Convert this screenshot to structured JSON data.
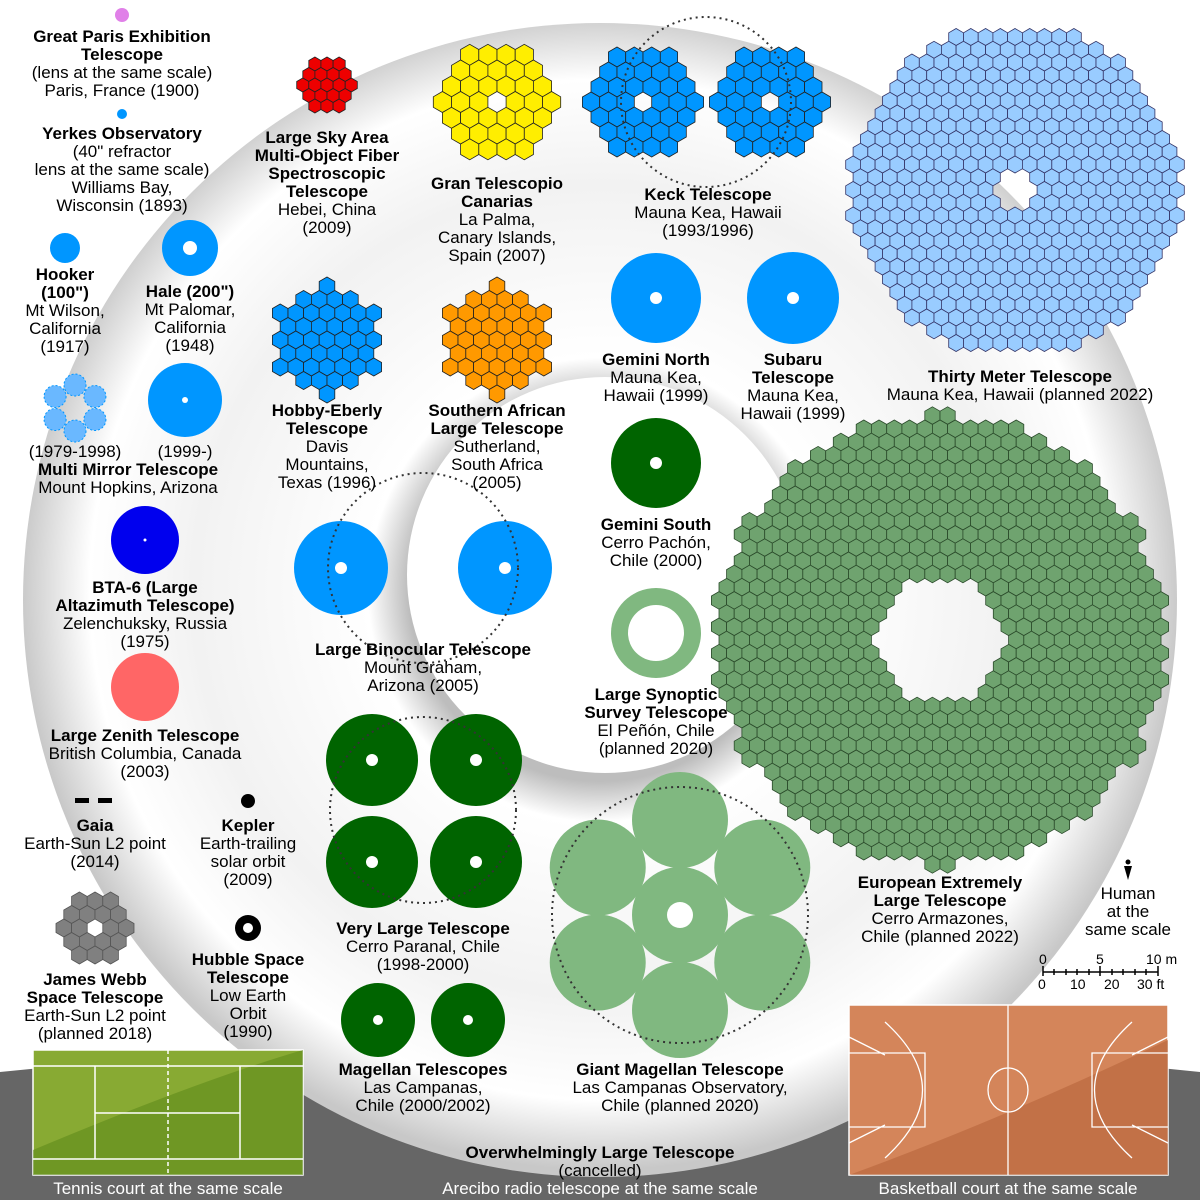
{
  "telescopes": [
    {
      "id": "paris",
      "name_lines": [
        "Great Paris Exhibition",
        "Telescope"
      ],
      "detail_lines": [
        "(lens at the same scale)",
        "Paris, France (1900)"
      ],
      "color": "#e080e8"
    },
    {
      "id": "yerkes",
      "name_lines": [
        "Yerkes Observatory"
      ],
      "detail_lines": [
        "(40\" refractor",
        "lens at the same scale)",
        "Williams Bay,",
        "Wisconsin (1893)"
      ],
      "color": "#0096ff"
    },
    {
      "id": "hooker",
      "name_lines": [
        "Hooker",
        "(100\")"
      ],
      "detail_lines": [
        "Mt Wilson,",
        "California",
        "(1917)"
      ],
      "color": "#0096ff"
    },
    {
      "id": "hale",
      "name_lines": [
        "Hale (200\")"
      ],
      "detail_lines": [
        "Mt Palomar,",
        "California",
        "(1948)"
      ],
      "color": "#0096ff"
    },
    {
      "id": "mmt",
      "name_lines": [
        "Multi Mirror Telescope"
      ],
      "detail_lines": [
        "Mount Hopkins, Arizona"
      ],
      "dates": [
        "(1979-1998)",
        "(1999-)"
      ],
      "color": "#0096ff"
    },
    {
      "id": "bta",
      "name_lines": [
        "BTA-6 (Large",
        "Altazimuth Telescope)"
      ],
      "detail_lines": [
        "Zelenchuksky, Russia",
        "(1975)"
      ],
      "color": "#0000ee"
    },
    {
      "id": "lzt",
      "name_lines": [
        "Large Zenith Telescope"
      ],
      "detail_lines": [
        "British Columbia, Canada",
        "(2003)"
      ],
      "color": "#ff6666"
    },
    {
      "id": "gaia",
      "name_lines": [
        "Gaia"
      ],
      "detail_lines": [
        "Earth-Sun L2 point",
        "(2014)"
      ],
      "color": "#000000"
    },
    {
      "id": "kepler",
      "name_lines": [
        "Kepler"
      ],
      "detail_lines": [
        "Earth-trailing",
        "solar orbit",
        "(2009)"
      ],
      "color": "#000000"
    },
    {
      "id": "jwst",
      "name_lines": [
        "James Webb",
        "Space Telescope"
      ],
      "detail_lines": [
        "Earth-Sun L2 point",
        "(planned 2018)"
      ],
      "color": "#808080"
    },
    {
      "id": "hubble",
      "name_lines": [
        "Hubble Space",
        "Telescope"
      ],
      "detail_lines": [
        "Low Earth",
        "Orbit",
        "(1990)"
      ],
      "color": "#000000"
    },
    {
      "id": "lamost",
      "name_lines": [
        "Large Sky Area",
        "Multi-Object Fiber",
        "Spectroscopic",
        "Telescope"
      ],
      "detail_lines": [
        "Hebei, China",
        "(2009)"
      ],
      "color": "#ee0000"
    },
    {
      "id": "gtc",
      "name_lines": [
        "Gran Telescopio",
        "Canarias"
      ],
      "detail_lines": [
        "La Palma,",
        "Canary Islands,",
        "Spain (2007)"
      ],
      "color": "#ffee00"
    },
    {
      "id": "keck",
      "name_lines": [
        "Keck Telescope"
      ],
      "detail_lines": [
        "Mauna Kea, Hawaii",
        "(1993/1996)"
      ],
      "color": "#0096ff"
    },
    {
      "id": "tmt",
      "name_lines": [
        "Thirty Meter Telescope"
      ],
      "detail_lines": [
        "Mauna Kea, Hawaii (planned 2022)"
      ],
      "color": "#99ccff"
    },
    {
      "id": "het",
      "name_lines": [
        "Hobby-Eberly",
        "Telescope"
      ],
      "detail_lines": [
        "Davis",
        "Mountains,",
        "Texas (1996)"
      ],
      "color": "#0096ff"
    },
    {
      "id": "salt",
      "name_lines": [
        "Southern African",
        "Large Telescope"
      ],
      "detail_lines": [
        "Sutherland,",
        "South Africa",
        "(2005)"
      ],
      "color": "#ff9900"
    },
    {
      "id": "gemn",
      "name_lines": [
        "Gemini North"
      ],
      "detail_lines": [
        "Mauna Kea,",
        "Hawaii (1999)"
      ],
      "color": "#0096ff"
    },
    {
      "id": "subaru",
      "name_lines": [
        "Subaru",
        "Telescope"
      ],
      "detail_lines": [
        "Mauna Kea,",
        "Hawaii (1999)"
      ],
      "color": "#0096ff"
    },
    {
      "id": "gems",
      "name_lines": [
        "Gemini South"
      ],
      "detail_lines": [
        "Cerro Pachón,",
        "Chile (2000)"
      ],
      "color": "#006400"
    },
    {
      "id": "lbt",
      "name_lines": [
        "Large Binocular Telescope"
      ],
      "detail_lines": [
        "Mount Graham,",
        "Arizona (2005)"
      ],
      "color": "#0096ff"
    },
    {
      "id": "lsst",
      "name_lines": [
        "Large Synoptic",
        "Survey Telescope"
      ],
      "detail_lines": [
        "El Peñón, Chile",
        "(planned 2020)"
      ],
      "color": "#80b880"
    },
    {
      "id": "vlt",
      "name_lines": [
        "Very Large Telescope"
      ],
      "detail_lines": [
        "Cerro Paranal, Chile",
        "(1998-2000)"
      ],
      "color": "#006400"
    },
    {
      "id": "elt",
      "name_lines": [
        "European Extremely",
        "Large Telescope"
      ],
      "detail_lines": [
        "Cerro Armazones,",
        "Chile (planned 2022)"
      ],
      "color": "#6fa36f"
    },
    {
      "id": "magellan",
      "name_lines": [
        "Magellan Telescopes"
      ],
      "detail_lines": [
        "Las Campanas,",
        "Chile (2000/2002)"
      ],
      "color": "#006400"
    },
    {
      "id": "gmt",
      "name_lines": [
        "Giant Magellan Telescope"
      ],
      "detail_lines": [
        "Las Campanas Observatory,",
        "Chile (planned 2020)"
      ],
      "color": "#80b880"
    },
    {
      "id": "owl",
      "name_lines": [
        "Overwhelmingly Large Telescope"
      ],
      "detail_lines": [
        "(cancelled)"
      ],
      "color": "#dddddd"
    }
  ],
  "human": {
    "lines": [
      "Human",
      "at the",
      "same scale"
    ]
  },
  "scale_bar": {
    "metric": [
      "0",
      "5",
      "10 m"
    ],
    "imperial": [
      "0",
      "10",
      "20",
      "30 ft"
    ]
  },
  "captions": {
    "tennis": "Tennis court at the same scale",
    "arecibo": "Arecibo radio telescope at the same scale",
    "basketball": "Basketball court at the same scale"
  },
  "colors": {
    "tennis": "#88aa33",
    "basketball": "#d4855a",
    "arecibo": "#666666"
  }
}
